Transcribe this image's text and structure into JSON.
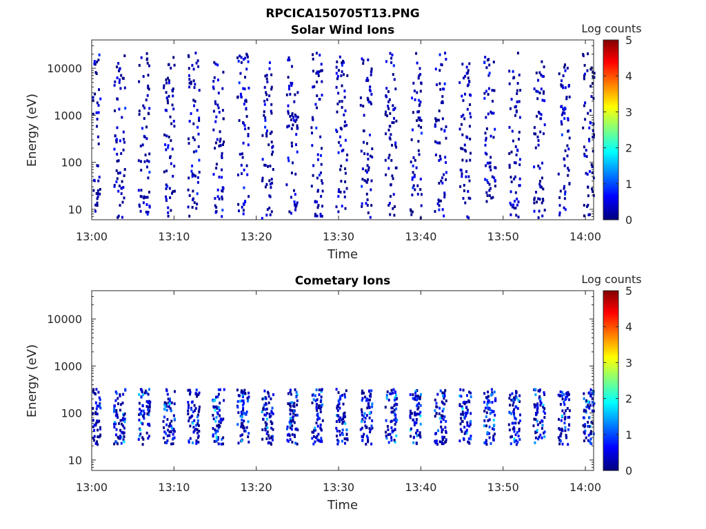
{
  "figure_title": "RPCICA150705T13.PNG",
  "colorbar": {
    "label": "Log counts",
    "ticks": [
      0,
      1,
      2,
      3,
      4,
      5
    ],
    "colormap": "jet",
    "range": [
      0,
      5
    ]
  },
  "chart_data": [
    {
      "type": "heatmap",
      "title": "Solar Wind Ions",
      "xlabel": "Time",
      "ylabel": "Energy (eV)",
      "x_ticks": [
        "13:00",
        "13:10",
        "13:20",
        "13:30",
        "13:40",
        "13:50",
        "14:00"
      ],
      "xlim": [
        "13:00",
        "14:01"
      ],
      "y_ticks": [
        10,
        100,
        1000,
        10000
      ],
      "y_tick_labels": [
        "10",
        "100",
        "1000",
        "10000"
      ],
      "ylim": [
        6,
        40000
      ],
      "y_scale": "log",
      "sweep_times": [
        "13:00",
        "13:03",
        "13:06",
        "13:09",
        "13:12",
        "13:15",
        "13:18",
        "13:21",
        "13:24",
        "13:27",
        "13:30",
        "13:33",
        "13:36",
        "13:39",
        "13:42",
        "13:45",
        "13:48",
        "13:51",
        "13:54",
        "13:57",
        "14:00"
      ],
      "energy_range_eV": [
        6,
        20000
      ],
      "log_counts_range": [
        0,
        1
      ]
    },
    {
      "type": "heatmap",
      "title": "Cometary Ions",
      "xlabel": "Time",
      "ylabel": "Energy (eV)",
      "x_ticks": [
        "13:00",
        "13:10",
        "13:20",
        "13:30",
        "13:40",
        "13:50",
        "14:00"
      ],
      "xlim": [
        "13:00",
        "14:01"
      ],
      "y_ticks": [
        10,
        100,
        1000,
        10000
      ],
      "y_tick_labels": [
        "10",
        "100",
        "1000",
        "10000"
      ],
      "ylim": [
        6,
        40000
      ],
      "y_scale": "log",
      "sweep_times": [
        "13:00",
        "13:03",
        "13:06",
        "13:09",
        "13:12",
        "13:15",
        "13:18",
        "13:21",
        "13:24",
        "13:27",
        "13:30",
        "13:33",
        "13:36",
        "13:39",
        "13:42",
        "13:45",
        "13:48",
        "13:51",
        "13:54",
        "13:57",
        "14:00"
      ],
      "energy_range_eV": [
        20,
        300
      ],
      "log_counts_range": [
        0,
        2
      ]
    }
  ]
}
